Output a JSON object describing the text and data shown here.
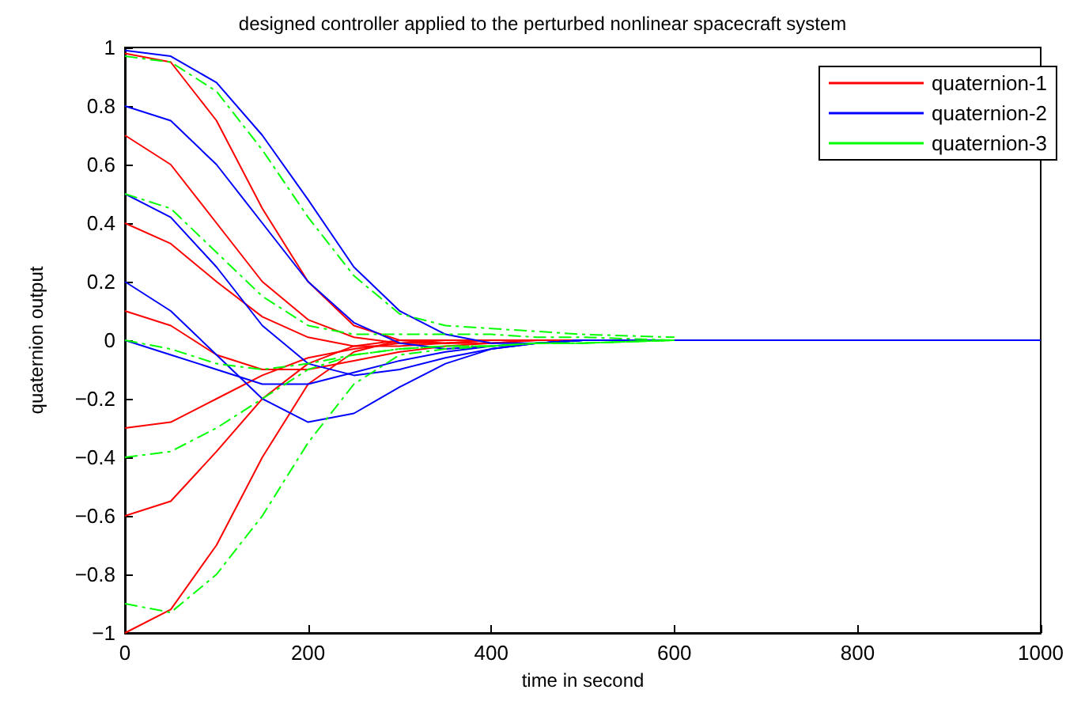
{
  "chart_data": {
    "type": "line",
    "title": "designed controller applied to the perturbed nonlinear spacecraft system",
    "xlabel": "time in second",
    "ylabel": "quaternion output",
    "x": [
      0,
      50,
      100,
      150,
      200,
      250,
      300,
      350,
      400,
      450,
      500,
      600,
      700,
      800,
      1000
    ],
    "xlim": [
      0,
      1000
    ],
    "xticks": [
      0,
      200,
      400,
      600,
      800,
      1000
    ],
    "ylim": [
      -1,
      1
    ],
    "yticks": [
      -1,
      -0.8,
      -0.6,
      -0.4,
      -0.2,
      0,
      0.2,
      0.4,
      0.6,
      0.8,
      1
    ],
    "grid": false,
    "legend": "top right",
    "marker": "none",
    "line_style": "solid",
    "series": [
      {
        "name": "quaternion-1",
        "color": "#ff0000",
        "values": [
          0.98,
          0.95,
          0.75,
          0.45,
          0.2,
          0.05,
          0,
          -0.01,
          -0.01,
          0,
          0,
          0,
          null,
          null,
          null
        ]
      },
      {
        "color": "#ff0000",
        "values": [
          0.7,
          0.6,
          0.4,
          0.2,
          0.07,
          0.01,
          -0.01,
          -0.01,
          0,
          0,
          0,
          0,
          null,
          null,
          null
        ]
      },
      {
        "color": "#ff0000",
        "values": [
          0.4,
          0.33,
          0.2,
          0.08,
          0.01,
          -0.02,
          -0.02,
          -0.01,
          0,
          0,
          0,
          0,
          null,
          null,
          null
        ]
      },
      {
        "color": "#ff0000",
        "values": [
          0.1,
          0.05,
          -0.05,
          -0.1,
          -0.1,
          -0.07,
          -0.04,
          -0.02,
          -0.01,
          0,
          0,
          0,
          null,
          null,
          null
        ]
      },
      {
        "color": "#ff0000",
        "values": [
          -0.3,
          -0.28,
          -0.2,
          -0.12,
          -0.06,
          -0.03,
          -0.01,
          0,
          0,
          0,
          0,
          0,
          null,
          null,
          null
        ]
      },
      {
        "color": "#ff0000",
        "values": [
          -0.6,
          -0.55,
          -0.38,
          -0.2,
          -0.08,
          -0.02,
          0,
          0,
          0,
          0,
          0,
          0,
          null,
          null,
          null
        ]
      },
      {
        "color": "#ff0000",
        "values": [
          -1,
          -0.92,
          -0.7,
          -0.4,
          -0.15,
          -0.04,
          0,
          0,
          0,
          0,
          0,
          0,
          null,
          null,
          null
        ]
      },
      {
        "name": "quaternion-2",
        "color": "#0000ff",
        "values": [
          0.99,
          0.97,
          0.88,
          0.7,
          0.48,
          0.25,
          0.1,
          0.02,
          -0.01,
          -0.01,
          0,
          0,
          null,
          null,
          null
        ]
      },
      {
        "color": "#0000ff",
        "values": [
          0.8,
          0.75,
          0.6,
          0.4,
          0.2,
          0.06,
          -0.01,
          -0.03,
          -0.02,
          -0.01,
          0,
          0,
          null,
          null,
          null
        ]
      },
      {
        "color": "#0000ff",
        "values": [
          0.5,
          0.42,
          0.25,
          0.05,
          -0.08,
          -0.12,
          -0.1,
          -0.06,
          -0.03,
          -0.01,
          0,
          0,
          null,
          null,
          null
        ]
      },
      {
        "color": "#0000ff",
        "values": [
          0.2,
          0.1,
          -0.05,
          -0.2,
          -0.28,
          -0.25,
          -0.16,
          -0.08,
          -0.03,
          -0.01,
          0,
          0,
          null,
          null,
          null
        ]
      },
      {
        "color": "#0000ff",
        "values": [
          0,
          -0.05,
          -0.1,
          -0.15,
          -0.15,
          -0.11,
          -0.07,
          -0.04,
          -0.02,
          -0.01,
          0,
          0,
          0,
          0,
          0
        ]
      },
      {
        "name": "quaternion-3",
        "color": "#00ff00",
        "line_style": "dashed",
        "values": [
          0.97,
          0.95,
          0.85,
          0.65,
          0.42,
          0.22,
          0.09,
          0.05,
          0.04,
          0.03,
          0.02,
          0.01,
          null,
          null,
          null
        ]
      },
      {
        "color": "#00ff00",
        "line_style": "dashed",
        "values": [
          0.5,
          0.45,
          0.3,
          0.15,
          0.05,
          0.02,
          0.02,
          0.02,
          0.02,
          0.01,
          0.01,
          0,
          null,
          null,
          null
        ]
      },
      {
        "color": "#00ff00",
        "line_style": "dashed",
        "values": [
          0,
          -0.03,
          -0.08,
          -0.1,
          -0.08,
          -0.05,
          -0.03,
          -0.02,
          -0.02,
          -0.01,
          -0.01,
          0,
          null,
          null,
          null
        ]
      },
      {
        "color": "#00ff00",
        "line_style": "dashed",
        "values": [
          -0.4,
          -0.38,
          -0.3,
          -0.2,
          -0.1,
          -0.05,
          -0.03,
          -0.02,
          -0.02,
          -0.01,
          -0.01,
          0,
          null,
          null,
          null
        ]
      },
      {
        "color": "#00ff00",
        "line_style": "dashed",
        "values": [
          -0.9,
          -0.93,
          -0.8,
          -0.6,
          -0.35,
          -0.15,
          -0.05,
          -0.03,
          -0.02,
          -0.01,
          -0.01,
          0,
          null,
          null,
          null
        ]
      }
    ]
  }
}
